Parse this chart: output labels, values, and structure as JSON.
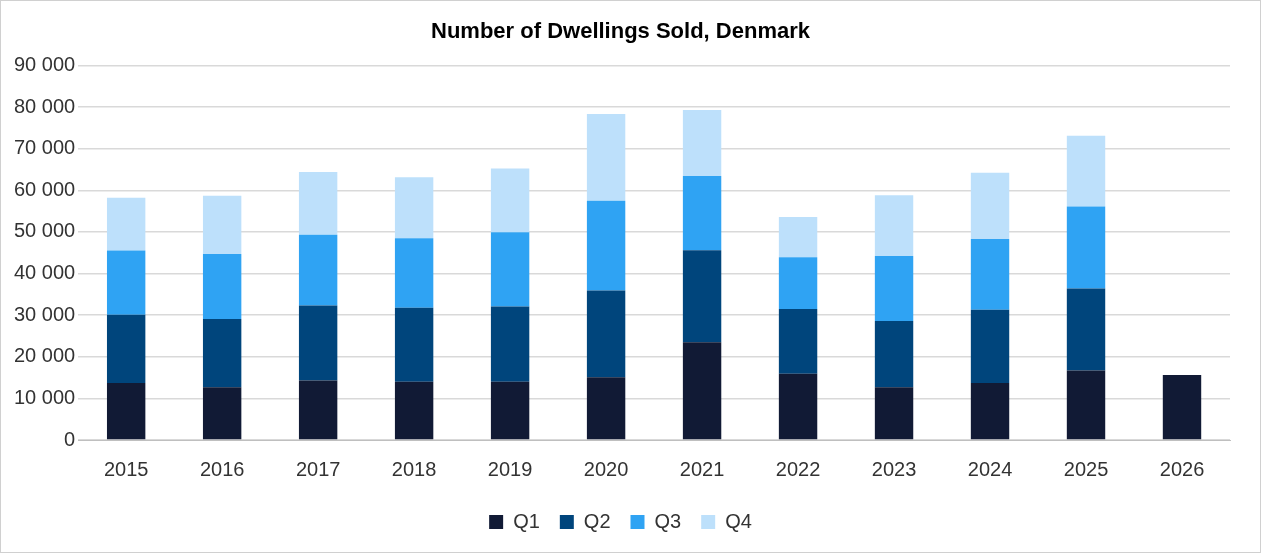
{
  "chart_data": {
    "type": "bar",
    "title": "Number of Dwellings Sold, Denmark",
    "stacked": true,
    "grid": "y",
    "legend": "bottom",
    "categories": [
      "2015",
      "2016",
      "2017",
      "2018",
      "2019",
      "2020",
      "2021",
      "2022",
      "2023",
      "2024",
      "2025",
      "2026"
    ],
    "ylim": [
      0,
      90000
    ],
    "yticks": [
      {
        "value": 0,
        "label": "0"
      },
      {
        "value": 10000,
        "label": "10 000"
      },
      {
        "value": 20000,
        "label": "20 000"
      },
      {
        "value": 30000,
        "label": "30 000"
      },
      {
        "value": 40000,
        "label": "40 000"
      },
      {
        "value": 50000,
        "label": "50 000"
      },
      {
        "value": 60000,
        "label": "60 000"
      },
      {
        "value": 70000,
        "label": "70 000"
      },
      {
        "value": 80000,
        "label": "80 000"
      },
      {
        "value": 90000,
        "label": "90 000"
      }
    ],
    "series": [
      {
        "name": "Q1",
        "color": "#111a35",
        "values": [
          13700,
          12700,
          14300,
          14000,
          14000,
          15100,
          23500,
          15900,
          12700,
          13700,
          16700,
          15600
        ]
      },
      {
        "name": "Q2",
        "color": "#00457c",
        "values": [
          16400,
          16400,
          18000,
          17800,
          18100,
          20800,
          22100,
          15600,
          15900,
          17600,
          19700,
          null
        ]
      },
      {
        "name": "Q3",
        "color": "#2fa3f3",
        "values": [
          15400,
          15600,
          17000,
          16700,
          17800,
          21600,
          17800,
          12400,
          15600,
          17000,
          19700,
          null
        ]
      },
      {
        "name": "Q4",
        "color": "#bde0fb",
        "values": [
          12700,
          14000,
          15100,
          14600,
          15300,
          20800,
          15900,
          9700,
          14600,
          15900,
          17000,
          null
        ]
      }
    ]
  }
}
